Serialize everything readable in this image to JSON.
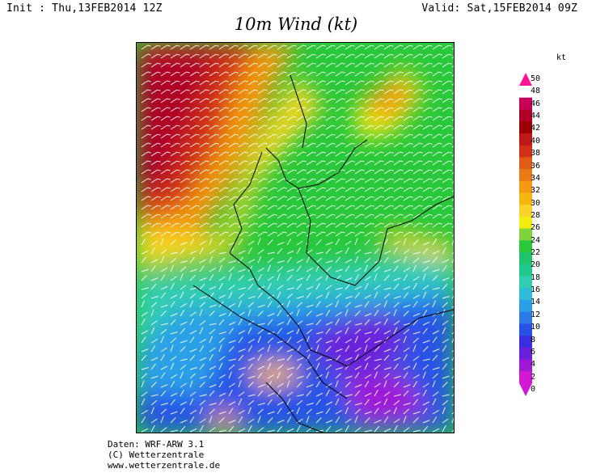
{
  "header": {
    "init": "Init : Thu,13FEB2014 12Z",
    "valid": "Valid: Sat,15FEB2014 09Z",
    "title": "10m Wind (kt)"
  },
  "legend": {
    "unit": "kt",
    "ticks": [
      "50",
      "48",
      "46",
      "44",
      "42",
      "40",
      "38",
      "36",
      "34",
      "32",
      "30",
      "28",
      "26",
      "24",
      "22",
      "20",
      "18",
      "16",
      "14",
      "12",
      "10",
      "8",
      "6",
      "4",
      "2",
      "0"
    ],
    "colors": [
      "#ff1493",
      "#c8005a",
      "#b00028",
      "#9b0000",
      "#c01818",
      "#d22f18",
      "#e05a18",
      "#ec7a14",
      "#f39a10",
      "#f6b612",
      "#f9d22a",
      "#f2ec12",
      "#7ed43a",
      "#28c83a",
      "#20c46a",
      "#1ec88e",
      "#30cdb2",
      "#30bcd6",
      "#2ca0e6",
      "#2c7ae8",
      "#2852e6",
      "#3a2ee0",
      "#6a20da",
      "#a018d6",
      "#d218d2"
    ]
  },
  "credits": {
    "line1": "Daten: WRF-ARW 3.1",
    "line2": "(C) Wetterzentrale",
    "line3": "www.wetterzentrale.de"
  }
}
